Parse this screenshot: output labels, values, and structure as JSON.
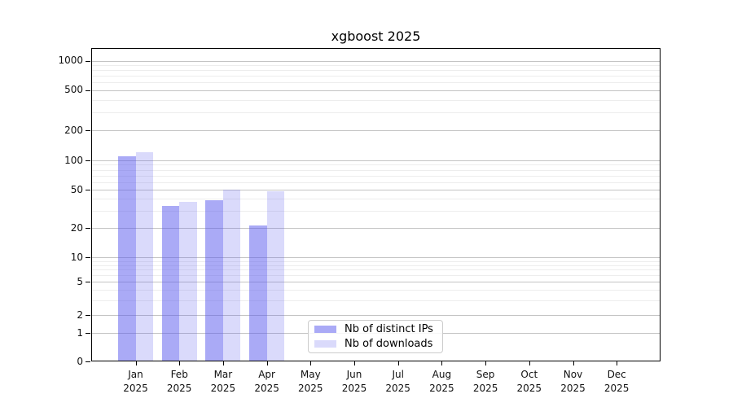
{
  "chart_data": {
    "type": "bar",
    "title": "xgboost 2025",
    "categories": [
      "Jan 2025",
      "Feb 2025",
      "Mar 2025",
      "Apr 2025",
      "May 2025",
      "Jun 2025",
      "Jul 2025",
      "Aug 2025",
      "Sep 2025",
      "Oct 2025",
      "Nov 2025",
      "Dec 2025"
    ],
    "x_axis": {
      "month_labels": [
        "Jan",
        "Feb",
        "Mar",
        "Apr",
        "May",
        "Jun",
        "Jul",
        "Aug",
        "Sep",
        "Oct",
        "Nov",
        "Dec"
      ],
      "year": "2025"
    },
    "series": [
      {
        "name": "Nb of distinct IPs",
        "color": "rgba(85,85,238,0.5)",
        "color_hex": "#aaaaf6",
        "values": [
          110,
          34,
          39,
          21,
          0,
          0,
          0,
          0,
          0,
          0,
          0,
          0
        ]
      },
      {
        "name": "Nb of downloads",
        "color": "rgba(85,85,238,0.22)",
        "color_hex": "#dadaf9",
        "values": [
          120,
          37,
          50,
          48,
          0,
          0,
          0,
          0,
          0,
          0,
          0,
          0
        ]
      }
    ],
    "y_axis": {
      "scale": "symlog",
      "tick_labels": [
        "0",
        "1",
        "2",
        "5",
        "10",
        "20",
        "50",
        "100",
        "200",
        "500",
        "1000"
      ],
      "minor_gridlines": [
        3,
        4,
        6,
        7,
        8,
        9,
        30,
        40,
        60,
        70,
        80,
        90,
        300,
        400,
        600,
        700,
        800,
        900
      ]
    },
    "ylim": [
      0,
      1380
    ],
    "legend": {
      "position": "lower-center",
      "entries": [
        "Nb of distinct IPs",
        "Nb of downloads"
      ]
    },
    "grid": {
      "major_color": "#c4c4c4",
      "minor_color": "#ededed"
    },
    "background": "#ffffff"
  }
}
